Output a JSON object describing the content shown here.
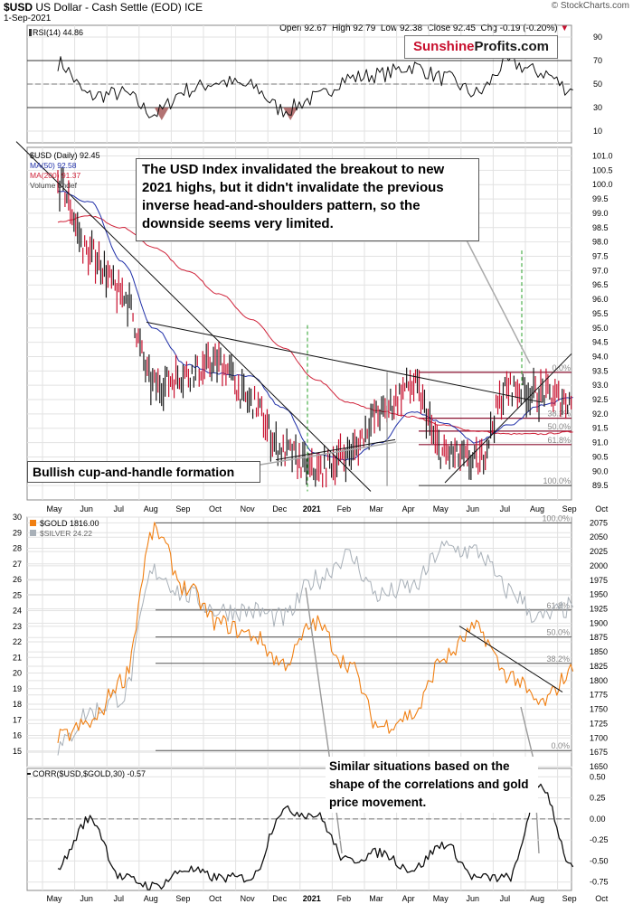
{
  "header": {
    "symbol": "$USD",
    "name": "US Dollar - Cash Settle (EOD)",
    "exchange": "ICE",
    "date": "1-Sep-2021",
    "ohlc": "Open 92.67  High 92.79  Low 92.38  Close 92.45  Chg -0.19 (-0.20%)",
    "watermark": "© StockCharts.com"
  },
  "brand": {
    "part1": "Sunshine",
    "part2": "Profits.com",
    "color1": "#c8102e",
    "color2": "#1a1a1a"
  },
  "x_months": [
    "May",
    "Jun",
    "Jul",
    "Aug",
    "Sep",
    "Oct",
    "Nov",
    "Dec",
    "2021",
    "Feb",
    "Mar",
    "Apr",
    "May",
    "Jun",
    "Jul",
    "Aug",
    "Sep",
    "Oct"
  ],
  "colors": {
    "usd_up": "#1a1a1a",
    "usd_down": "#c8102e",
    "ma50": "#1f2fa8",
    "ma200": "#d0233a",
    "gold": "#f07f12",
    "silver": "#a8b0b8",
    "fib": "#8b1230",
    "grid": "#e2e2e2"
  },
  "annotations": {
    "usd_main": "The USD Index invalidated the breakout to new 2021 highs, but it didn't invalidate the previous inverse head-and-shoulders pattern, so the downside seems very limited.",
    "cup_handle": "Bullish cup-and-handle formation",
    "similar": "Similar situations based on the shape of the correlations and gold price movement."
  },
  "chart_data": [
    {
      "type": "line",
      "title": "RSI(14) 44.86",
      "ylim": [
        0,
        100
      ],
      "yticks": [
        "90",
        "70",
        "50",
        "30",
        "10"
      ],
      "reference_lines": [
        70,
        50,
        30
      ],
      "x": [
        "May",
        "Jun",
        "Jul",
        "Aug",
        "Sep",
        "Oct",
        "Nov",
        "Dec",
        "2021",
        "Feb",
        "Mar",
        "Apr",
        "May",
        "Jun",
        "Jul",
        "Aug",
        "Sep"
      ],
      "series": [
        {
          "name": "RSI(14)",
          "values": [
            68,
            40,
            42,
            25,
            45,
            52,
            48,
            28,
            38,
            55,
            58,
            65,
            55,
            42,
            68,
            60,
            45
          ]
        }
      ]
    },
    {
      "type": "line",
      "title": "$USD (Daily) 92.45",
      "legend": [
        "MA(50) 92.58",
        "MA(200) 91.37",
        "Volume undef"
      ],
      "ylim": [
        89,
        101.3
      ],
      "yticks": [
        "101.0",
        "100.5",
        "100.0",
        "99.5",
        "99.0",
        "98.5",
        "98.0",
        "97.5",
        "97.0",
        "96.5",
        "96.0",
        "95.5",
        "95.0",
        "94.5",
        "94.0",
        "93.5",
        "93.0",
        "92.5",
        "92.0",
        "91.5",
        "91.0",
        "90.5",
        "90.0",
        "89.5"
      ],
      "x": [
        "May",
        "Jun",
        "Jul",
        "Aug",
        "Sep",
        "Oct",
        "Nov",
        "Dec",
        "2021",
        "Feb",
        "Mar",
        "Apr",
        "May",
        "Jun",
        "Jul",
        "Aug",
        "Sep"
      ],
      "series": [
        {
          "name": "$USD",
          "values": [
            100.0,
            97.6,
            96.2,
            93.0,
            93.4,
            93.8,
            92.4,
            90.7,
            90.0,
            90.6,
            92.0,
            93.0,
            90.6,
            90.3,
            92.9,
            92.7,
            92.45
          ]
        },
        {
          "name": "MA(50)",
          "values": [
            99.8,
            99.4,
            97.3,
            95.0,
            93.7,
            93.4,
            93.3,
            92.2,
            90.6,
            90.4,
            91.0,
            92.1,
            91.7,
            91.0,
            91.6,
            92.3,
            92.58
          ]
        },
        {
          "name": "MA(200)",
          "values": [
            98.7,
            98.9,
            98.5,
            97.8,
            97.0,
            96.2,
            95.3,
            94.3,
            93.2,
            92.4,
            92.1,
            91.9,
            91.6,
            91.4,
            91.3,
            91.3,
            91.37
          ]
        }
      ],
      "fib_levels": [
        {
          "label": "0.0%",
          "value": 93.45
        },
        {
          "label": "38.2%",
          "value": 91.85
        },
        {
          "label": "50.0%",
          "value": 91.4
        },
        {
          "label": "61.8%",
          "value": 90.93
        },
        {
          "label": "100.0%",
          "value": 89.5
        }
      ]
    },
    {
      "type": "line",
      "title": "$GOLD 1816.00",
      "legend": [
        "$GOLD 1816.00",
        "$SILVER 24.22"
      ],
      "ylim_left": [
        14,
        30
      ],
      "ylim_right": [
        1650,
        2085
      ],
      "yticks_left": [
        "30",
        "29",
        "28",
        "27",
        "26",
        "25",
        "24",
        "23",
        "22",
        "21",
        "20",
        "19",
        "18",
        "17",
        "16",
        "15"
      ],
      "yticks_right": [
        "2075",
        "2050",
        "2025",
        "2000",
        "1975",
        "1950",
        "1925",
        "1900",
        "1875",
        "1850",
        "1825",
        "1800",
        "1775",
        "1750",
        "1725",
        "1700",
        "1675",
        "1650"
      ],
      "x": [
        "May",
        "Jun",
        "Jul",
        "Aug",
        "Sep",
        "Oct",
        "Nov",
        "Dec",
        "2021",
        "Feb",
        "Mar",
        "Apr",
        "May",
        "Jun",
        "Jul",
        "Aug",
        "Sep"
      ],
      "series": [
        {
          "name": "$GOLD",
          "values": [
            1700,
            1725,
            1800,
            2060,
            1960,
            1900,
            1880,
            1830,
            1900,
            1830,
            1720,
            1740,
            1840,
            1890,
            1810,
            1760,
            1816
          ]
        },
        {
          "name": "$SILVER",
          "values": [
            15.2,
            17.5,
            18.5,
            26.5,
            25.0,
            24.0,
            24.0,
            23.5,
            26.0,
            27.5,
            25.0,
            25.5,
            28.0,
            27.8,
            25.3,
            23.5,
            24.22
          ]
        }
      ],
      "fib_levels": [
        {
          "label": "100.0%",
          "value": 2075
        },
        {
          "label": "61.8%",
          "value": 1923
        },
        {
          "label": "50.0%",
          "value": 1876
        },
        {
          "label": "38.2%",
          "value": 1830
        },
        {
          "label": "0.0%",
          "value": 1678
        }
      ]
    },
    {
      "type": "line",
      "title": "CORR($USD,$GOLD,30) -0.57",
      "ylim": [
        -0.85,
        0.6
      ],
      "yticks": [
        "0.50",
        "0.25",
        "0.00",
        "-0.25",
        "-0.50",
        "-0.75"
      ],
      "reference_lines": [
        0.0
      ],
      "x": [
        "May",
        "Jun",
        "Jul",
        "Aug",
        "Sep",
        "Oct",
        "Nov",
        "Dec",
        "2021",
        "Feb",
        "Mar",
        "Apr",
        "May",
        "Jun",
        "Jul",
        "Aug",
        "Sep"
      ],
      "series": [
        {
          "name": "CORR($USD,$GOLD,30)",
          "values": [
            -0.55,
            0.0,
            -0.7,
            -0.8,
            -0.6,
            -0.7,
            -0.7,
            0.1,
            0.05,
            -0.5,
            -0.4,
            -0.6,
            -0.3,
            -0.7,
            -0.7,
            0.4,
            -0.57
          ]
        }
      ]
    }
  ]
}
